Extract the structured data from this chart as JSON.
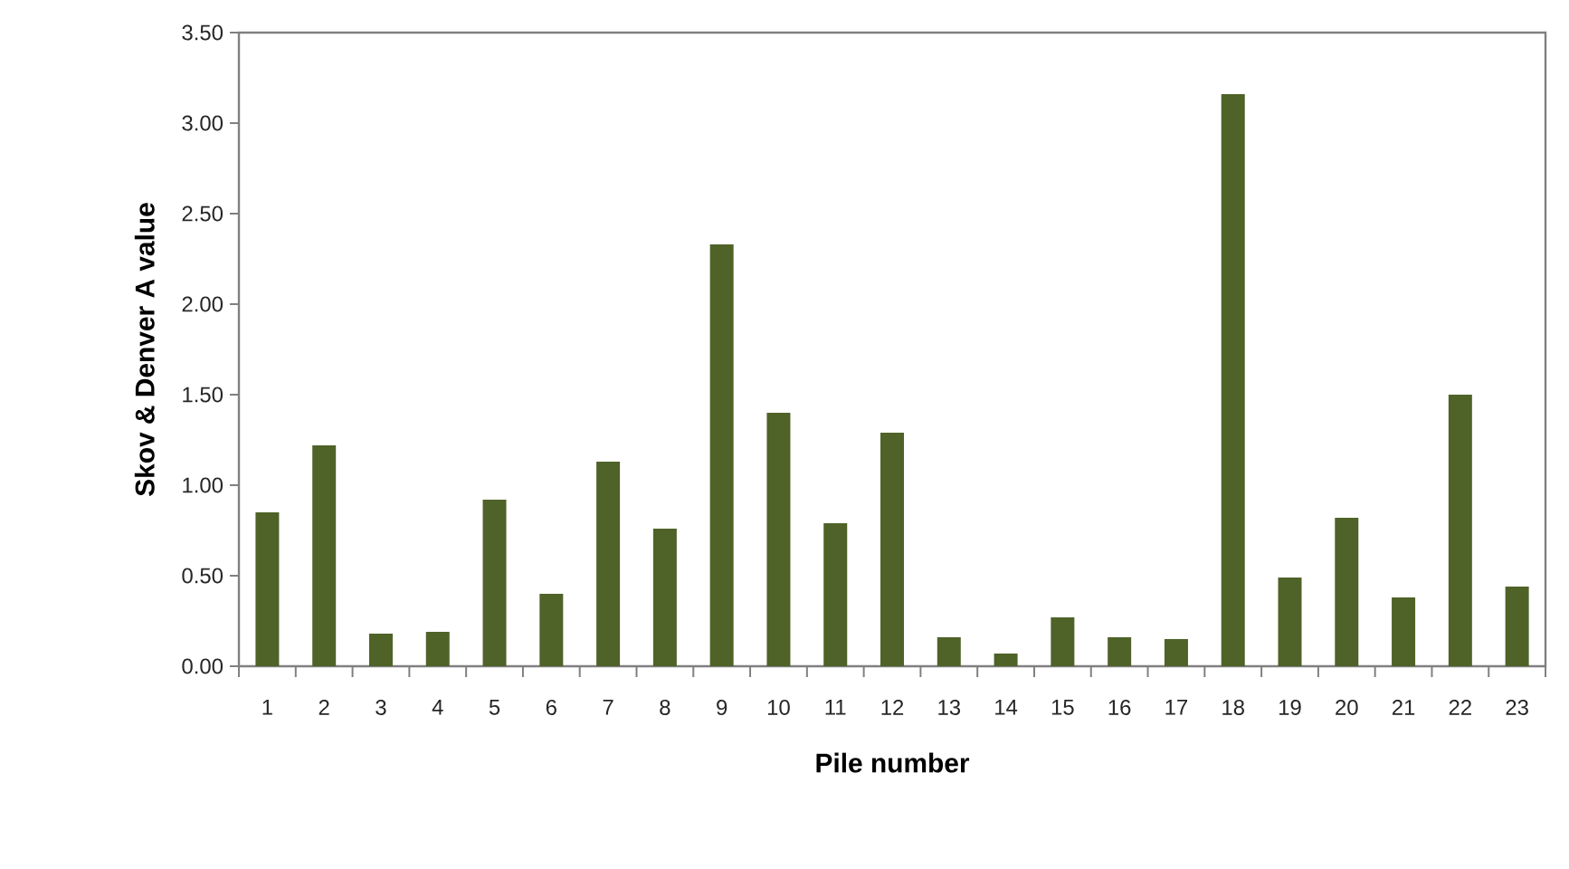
{
  "chart_data": {
    "type": "bar",
    "xlabel": "Pile number",
    "ylabel": "Skov & Denver A value",
    "categories": [
      "1",
      "2",
      "3",
      "4",
      "5",
      "6",
      "7",
      "8",
      "9",
      "10",
      "11",
      "12",
      "13",
      "14",
      "15",
      "16",
      "17",
      "18",
      "19",
      "20",
      "21",
      "22",
      "23"
    ],
    "values": [
      0.85,
      1.22,
      0.18,
      0.19,
      0.92,
      0.4,
      1.13,
      0.76,
      2.33,
      1.4,
      0.79,
      1.29,
      0.16,
      0.07,
      0.27,
      0.16,
      0.15,
      3.16,
      0.49,
      0.82,
      0.38,
      1.5,
      0.44
    ],
    "color": "#4f6228",
    "ylim": [
      0,
      3.5
    ],
    "yticks": [
      {
        "value": 0,
        "label": "0.00"
      },
      {
        "value": 0.5,
        "label": "0.50"
      },
      {
        "value": 1,
        "label": "1.00"
      },
      {
        "value": 1.5,
        "label": "1.50"
      },
      {
        "value": 2,
        "label": "2.00"
      },
      {
        "value": 2.5,
        "label": "2.50"
      },
      {
        "value": 3,
        "label": "3.00"
      },
      {
        "value": 3.5,
        "label": "3.50"
      }
    ],
    "grid": false
  }
}
